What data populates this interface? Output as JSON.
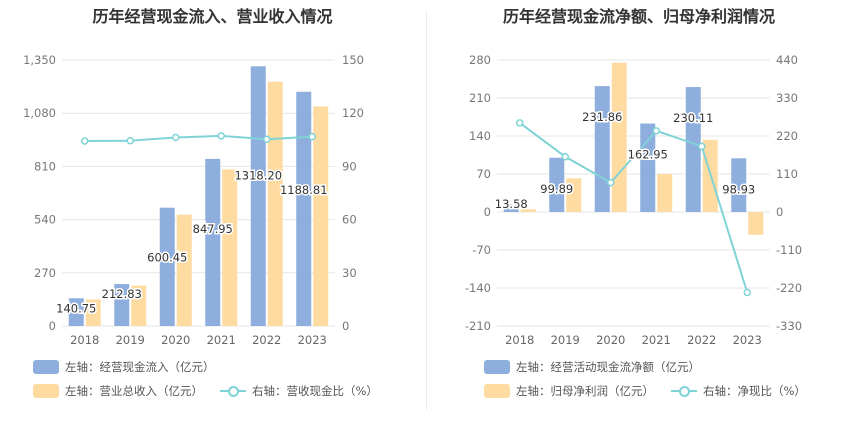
{
  "colors": {
    "bar1": "#8eaedd",
    "bar2": "#fedba1",
    "line": "#7fd3d6"
  },
  "chart_data": [
    {
      "type": "bar",
      "title": "历年经营现金流入、营业收入情况",
      "categories": [
        "2018",
        "2019",
        "2020",
        "2021",
        "2022",
        "2023"
      ],
      "left_axis": {
        "min": 0,
        "max": 1350,
        "ticks": [
          "0",
          "270",
          "540",
          "810",
          "1,080",
          "1,350"
        ]
      },
      "right_axis": {
        "min": 0,
        "max": 150,
        "ticks": [
          "0",
          "30",
          "60",
          "90",
          "120",
          "150"
        ]
      },
      "series": [
        {
          "name": "左轴：经营现金流入（亿元）",
          "axis": "left",
          "type": "bar",
          "values": [
            140.75,
            212.83,
            600.45,
            847.95,
            1318.2,
            1188.81
          ],
          "labels": [
            "140.75",
            "212.83",
            "600.45",
            "847.95",
            "1318.20",
            "1188.81"
          ]
        },
        {
          "name": "左轴：营业总收入（亿元）",
          "axis": "left",
          "type": "bar",
          "values": [
            135,
            205,
            565,
            795,
            1240,
            1115
          ]
        },
        {
          "name": "右轴：营收现金比（%）",
          "axis": "right",
          "type": "line",
          "values": [
            104.3,
            104.5,
            106.3,
            107.2,
            105.3,
            106.8
          ]
        }
      ],
      "grid": true
    },
    {
      "type": "bar",
      "title": "历年经营现金流净额、归母净利润情况",
      "categories": [
        "2018",
        "2019",
        "2020",
        "2021",
        "2022",
        "2023"
      ],
      "left_axis": {
        "min": -210,
        "max": 280,
        "ticks": [
          "-210",
          "-140",
          "-70",
          "0",
          "70",
          "140",
          "210",
          "280"
        ]
      },
      "right_axis": {
        "min": -330,
        "max": 440,
        "ticks": [
          "-330",
          "-220",
          "-110",
          "0",
          "110",
          "220",
          "330",
          "440"
        ]
      },
      "series": [
        {
          "name": "左轴：经营活动现金流净额（亿元）",
          "axis": "left",
          "type": "bar",
          "values": [
            13.58,
            99.89,
            231.86,
            162.95,
            230.11,
            98.93
          ],
          "labels": [
            "13.58",
            "99.89",
            "231.86",
            "162.95",
            "230.11",
            "98.93"
          ]
        },
        {
          "name": "左轴：归母净利润（亿元）",
          "axis": "left",
          "type": "bar",
          "values": [
            5,
            62,
            275,
            70,
            133,
            -42
          ]
        },
        {
          "name": "右轴：净现比（%）",
          "axis": "right",
          "type": "line",
          "values": [
            258,
            160,
            85,
            235,
            190,
            -233
          ]
        }
      ],
      "grid": true
    }
  ]
}
